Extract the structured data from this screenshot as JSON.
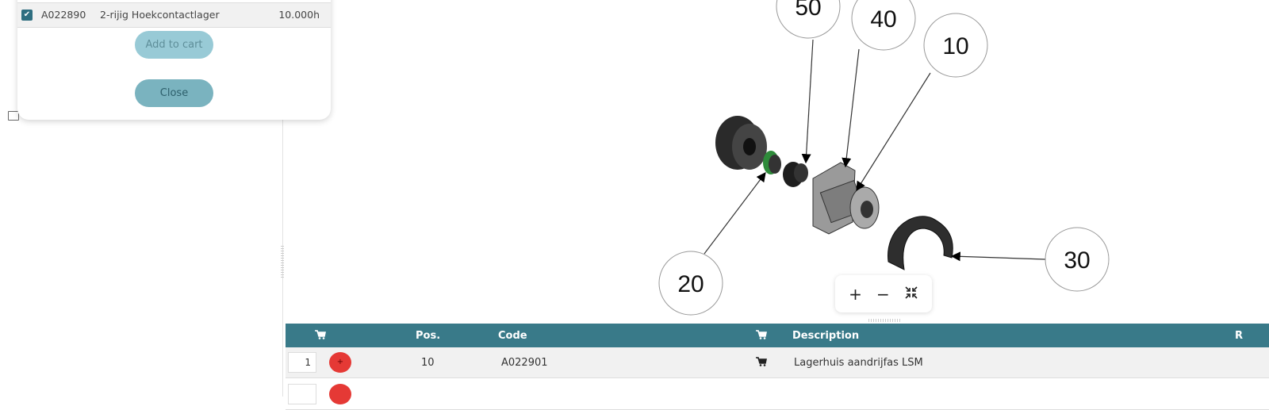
{
  "modal": {
    "row": {
      "checked": true,
      "code": "A022890",
      "description": "2-rijig Hoekcontactlager",
      "quantity": "10.000h"
    },
    "add_to_cart_label": "Add to cart",
    "close_label": "Close"
  },
  "diagram": {
    "callouts": [
      "50",
      "40",
      "10",
      "20",
      "30"
    ],
    "zoom_in": "+",
    "zoom_out": "−",
    "fit_icon": "fit-screen-icon"
  },
  "table": {
    "headers": {
      "pos": "Pos.",
      "code": "Code",
      "description": "Description",
      "last": "R"
    },
    "rows": [
      {
        "qty": "1",
        "pos": "10",
        "code": "A022901",
        "description": "Lagerhuis aandrijfas LSM"
      },
      {
        "qty": "",
        "pos": "",
        "code": "",
        "description": ""
      }
    ]
  },
  "colors": {
    "header": "#397a89",
    "add_button": "#e53935",
    "accent": "#7ab3bf"
  }
}
